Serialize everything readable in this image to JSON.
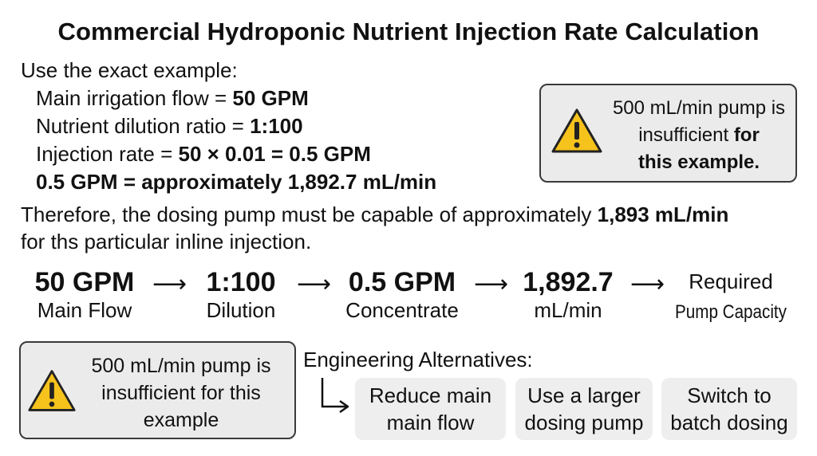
{
  "title": "Commercial Hydroponic Nutrient Injection Rate Calculation",
  "example": {
    "intro": "Use the exact example:",
    "flow_label": "Main irrigation flow = ",
    "flow_value": "50 GPM",
    "ratio_label": "Nutrient dilution ratio = ",
    "ratio_value": "1:100",
    "injection_label": "Injection rate = ",
    "injection_value": "50 × 0.01 = 0.5 GPM",
    "conversion": "0.5 GPM = approximately 1,892.7 mL/min"
  },
  "therefore": {
    "text_1": "Therefore, the dosing pump must be capable of approximately ",
    "value": "1,893 mL/min",
    "text_2": "for ths particular inline injection."
  },
  "warning_top": {
    "line_1": "500 mL/min pump is",
    "line_2": "insufficient ",
    "line_2_bold": "for",
    "line_3": "this example."
  },
  "flow": [
    {
      "value": "50 GPM",
      "label": "Main Flow"
    },
    {
      "value": "1:100",
      "label": "Dilution"
    },
    {
      "value": "0.5 GPM",
      "label": "Concentrate"
    },
    {
      "value": "1,892.7",
      "label": "mL/min"
    },
    {
      "value": "Required",
      "label": "Pump Capacity"
    }
  ],
  "arrow_glyph": "⟶",
  "warning_bottom": {
    "line_1": "500 mL/min pump is",
    "line_2": "insufficient for this",
    "line_3": "example"
  },
  "alternatives": {
    "heading": "Engineering Alternatives:",
    "options": [
      {
        "line_1": "Reduce main",
        "line_2": "main flow"
      },
      {
        "line_1": "Use a larger",
        "line_2": "dosing pump"
      },
      {
        "line_1": "Switch to",
        "line_2": "batch dosing"
      }
    ]
  },
  "colors": {
    "warning_fill": "#f6c21c",
    "box_fill": "#ebebeb",
    "option_fill": "#eeeeee"
  }
}
